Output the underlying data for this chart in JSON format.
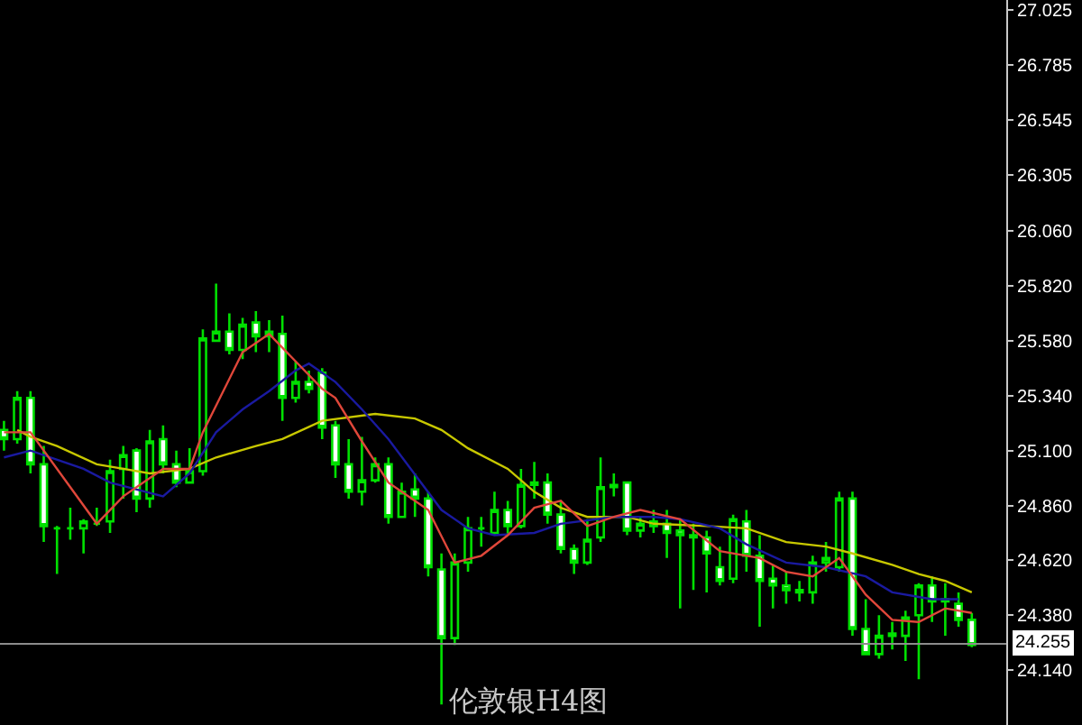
{
  "chart_data": {
    "type": "candlestick",
    "title": "伦敦银H4图",
    "categories": [
      null,
      null,
      null,
      null,
      null,
      null,
      null,
      null,
      null,
      null,
      null,
      null,
      null,
      null,
      null,
      null,
      null,
      null,
      null,
      null,
      null,
      null,
      null,
      null,
      null,
      null,
      null,
      null,
      null,
      null,
      null,
      null,
      null,
      null,
      null,
      null,
      null,
      null,
      null,
      null,
      null,
      null,
      null,
      null,
      null,
      null,
      null,
      null,
      null,
      null,
      null,
      null,
      null,
      null,
      null,
      null,
      null,
      null,
      null,
      null,
      null,
      null,
      null,
      null,
      null,
      null,
      null,
      null,
      null,
      null,
      null,
      null,
      null,
      null
    ],
    "ohlc": [
      [
        25.19,
        25.23,
        25.1,
        25.15
      ],
      [
        25.15,
        25.36,
        25.13,
        25.33
      ],
      [
        25.33,
        25.36,
        25.0,
        25.04
      ],
      [
        25.04,
        25.12,
        24.7,
        24.77
      ],
      [
        24.76,
        24.77,
        24.56,
        24.76
      ],
      [
        24.76,
        24.85,
        24.71,
        24.76
      ],
      [
        24.76,
        24.8,
        24.65,
        24.79
      ],
      [
        24.78,
        24.85,
        24.77,
        24.78
      ],
      [
        24.79,
        25.06,
        24.74,
        25.01
      ],
      [
        25.02,
        25.12,
        24.89,
        25.08
      ],
      [
        25.1,
        25.11,
        24.83,
        24.89
      ],
      [
        24.89,
        25.19,
        24.85,
        25.14
      ],
      [
        25.15,
        25.21,
        25.0,
        25.04
      ],
      [
        25.04,
        25.1,
        24.94,
        24.96
      ],
      [
        24.96,
        25.11,
        24.96,
        25.01
      ],
      [
        25.01,
        25.63,
        24.99,
        25.59
      ],
      [
        25.58,
        25.83,
        25.58,
        25.62
      ],
      [
        25.62,
        25.7,
        25.52,
        25.54
      ],
      [
        25.54,
        25.68,
        25.5,
        25.65
      ],
      [
        25.66,
        25.71,
        25.53,
        25.6
      ],
      [
        25.6,
        25.67,
        25.53,
        25.62
      ],
      [
        25.61,
        25.69,
        25.23,
        25.33
      ],
      [
        25.33,
        25.49,
        25.31,
        25.4
      ],
      [
        25.4,
        25.45,
        25.35,
        25.37
      ],
      [
        25.44,
        25.46,
        25.15,
        25.2
      ],
      [
        25.21,
        25.23,
        24.98,
        25.04
      ],
      [
        25.04,
        25.15,
        24.89,
        24.92
      ],
      [
        24.92,
        25.16,
        24.86,
        24.97
      ],
      [
        24.97,
        25.07,
        24.96,
        25.04
      ],
      [
        25.04,
        25.07,
        24.78,
        24.81
      ],
      [
        24.81,
        24.96,
        24.81,
        24.92
      ],
      [
        24.93,
        25.0,
        24.81,
        24.89
      ],
      [
        24.89,
        24.92,
        24.55,
        24.59
      ],
      [
        24.58,
        24.65,
        23.99,
        24.28
      ],
      [
        24.28,
        24.65,
        24.25,
        24.61
      ],
      [
        24.61,
        24.81,
        24.57,
        24.76
      ],
      [
        24.76,
        24.81,
        24.68,
        24.76
      ],
      [
        24.74,
        24.92,
        24.73,
        24.84
      ],
      [
        24.84,
        24.88,
        24.73,
        24.77
      ],
      [
        24.77,
        25.02,
        24.76,
        24.95
      ],
      [
        24.95,
        25.05,
        24.89,
        24.96
      ],
      [
        24.96,
        25.0,
        24.78,
        24.82
      ],
      [
        24.82,
        24.88,
        24.65,
        24.67
      ],
      [
        24.67,
        24.69,
        24.56,
        24.61
      ],
      [
        24.61,
        24.8,
        24.6,
        24.71
      ],
      [
        24.72,
        25.07,
        24.7,
        24.94
      ],
      [
        24.94,
        25.0,
        24.9,
        24.95
      ],
      [
        24.96,
        24.96,
        24.73,
        24.75
      ],
      [
        24.75,
        24.81,
        24.72,
        24.78
      ],
      [
        24.77,
        24.84,
        24.74,
        24.79
      ],
      [
        24.78,
        24.84,
        24.63,
        24.74
      ],
      [
        24.75,
        24.8,
        24.41,
        24.73
      ],
      [
        24.73,
        24.78,
        24.49,
        24.72
      ],
      [
        24.72,
        24.75,
        24.48,
        24.65
      ],
      [
        24.59,
        24.68,
        24.51,
        24.53
      ],
      [
        24.54,
        24.82,
        24.52,
        24.8
      ],
      [
        24.79,
        24.84,
        24.57,
        24.64
      ],
      [
        24.64,
        24.73,
        24.33,
        24.53
      ],
      [
        24.54,
        24.6,
        24.41,
        24.51
      ],
      [
        24.51,
        24.57,
        24.43,
        24.49
      ],
      [
        24.49,
        24.53,
        24.44,
        24.48
      ],
      [
        24.48,
        24.64,
        24.43,
        24.61
      ],
      [
        24.61,
        24.7,
        24.57,
        24.63
      ],
      [
        24.59,
        24.92,
        24.57,
        24.89
      ],
      [
        24.89,
        24.92,
        24.29,
        24.32
      ],
      [
        24.32,
        24.45,
        24.21,
        24.21
      ],
      [
        24.21,
        24.38,
        24.19,
        24.29
      ],
      [
        24.3,
        24.35,
        24.23,
        24.29
      ],
      [
        24.29,
        24.4,
        24.18,
        24.37
      ],
      [
        24.38,
        24.52,
        24.1,
        24.51
      ],
      [
        24.51,
        24.55,
        24.35,
        24.44
      ],
      [
        24.45,
        24.52,
        24.29,
        24.44
      ],
      [
        24.43,
        24.48,
        24.33,
        24.36
      ],
      [
        24.36,
        24.39,
        24.24,
        24.25
      ]
    ],
    "series": [
      {
        "type": "line",
        "color": "#e0473a",
        "values": [
          25.18,
          null,
          25.18,
          null,
          null,
          null,
          null,
          24.78,
          null,
          24.9,
          null,
          null,
          25.02,
          null,
          25.02,
          25.18,
          null,
          null,
          25.53,
          null,
          25.61,
          null,
          25.49,
          null,
          25.37,
          25.33,
          null,
          25.14,
          null,
          24.96,
          null,
          null,
          24.84,
          null,
          24.61,
          null,
          24.64,
          null,
          24.73,
          null,
          24.85,
          null,
          24.88,
          null,
          24.77,
          null,
          24.81,
          null,
          24.84,
          null,
          null,
          24.8,
          null,
          null,
          24.66,
          null,
          null,
          24.63,
          null,
          24.57,
          null,
          24.55,
          null,
          24.63,
          null,
          24.47,
          null,
          24.36,
          null,
          24.35,
          null,
          24.41,
          null,
          24.39
        ]
      },
      {
        "type": "line",
        "color": "#1a1aa0",
        "values": [
          25.07,
          null,
          25.1,
          null,
          null,
          null,
          25.02,
          null,
          24.96,
          null,
          null,
          null,
          24.9,
          null,
          25.0,
          null,
          25.18,
          null,
          25.28,
          null,
          25.36,
          null,
          25.45,
          25.48,
          null,
          25.4,
          null,
          25.28,
          null,
          25.15,
          null,
          null,
          null,
          24.84,
          null,
          24.76,
          null,
          24.73,
          null,
          null,
          24.74,
          null,
          24.78,
          null,
          null,
          null,
          24.81,
          null,
          null,
          24.81,
          null,
          24.8,
          null,
          null,
          24.76,
          null,
          24.69,
          null,
          null,
          24.61,
          null,
          null,
          24.59,
          null,
          null,
          24.55,
          null,
          24.48,
          null,
          null,
          24.45,
          null,
          24.45,
          null
        ]
      },
      {
        "type": "line",
        "color": "#c8c800",
        "values": [
          null,
          25.19,
          25.16,
          null,
          25.12,
          null,
          null,
          25.04,
          null,
          25.02,
          null,
          25.0,
          null,
          null,
          25.02,
          null,
          25.07,
          null,
          null,
          25.12,
          null,
          25.15,
          null,
          null,
          25.23,
          null,
          null,
          null,
          25.26,
          null,
          null,
          25.24,
          null,
          25.19,
          null,
          25.11,
          null,
          null,
          25.02,
          null,
          24.92,
          null,
          24.85,
          null,
          24.81,
          null,
          null,
          24.81,
          null,
          24.78,
          null,
          null,
          null,
          24.77,
          null,
          null,
          24.76,
          null,
          null,
          24.7,
          null,
          null,
          24.68,
          null,
          24.65,
          null,
          null,
          24.6,
          null,
          24.56,
          null,
          24.53,
          null,
          24.48
        ]
      }
    ],
    "ylim": [
      23.9,
      27.07
    ],
    "yticks": [
      {
        "value": 27.025,
        "label": "27.025"
      },
      {
        "value": 26.785,
        "label": "26.785"
      },
      {
        "value": 26.545,
        "label": "26.545"
      },
      {
        "value": 26.305,
        "label": "26.305"
      },
      {
        "value": 26.06,
        "label": "26.060"
      },
      {
        "value": 25.82,
        "label": "25.820"
      },
      {
        "value": 25.58,
        "label": "25.580"
      },
      {
        "value": 25.34,
        "label": "25.340"
      },
      {
        "value": 25.1,
        "label": "25.100"
      },
      {
        "value": 24.86,
        "label": "24.860"
      },
      {
        "value": 24.62,
        "label": "24.620"
      },
      {
        "value": 24.38,
        "label": "24.380"
      },
      {
        "value": 24.14,
        "label": "24.140"
      }
    ],
    "ref_lines": [
      {
        "axis": "y",
        "value": 24.255,
        "label": "24.255",
        "color": "#8c8c8c"
      }
    ],
    "tick_labels": "y",
    "grid": false
  }
}
